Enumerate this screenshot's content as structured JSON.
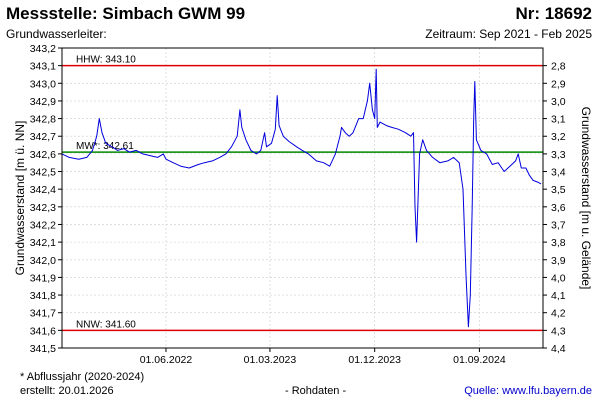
{
  "header": {
    "title": "Messstelle: Simbach GWM 99",
    "nr": "Nr: 18692",
    "subtitle": "Grundwasserleiter:",
    "period": "Zeitraum: Sep 2021 - Feb 2025"
  },
  "footer": {
    "footnote": "* Abflussjahr (2020-2024)",
    "created": "erstellt:  20.01.2026",
    "raw": "- Rohdaten -",
    "source": "Quelle: www.lfu.bayern.de"
  },
  "colors": {
    "series": "#0000dd",
    "hhw": "#dd0000",
    "mw": "#008800",
    "nnw": "#dd0000",
    "grid": "#cccccc"
  },
  "chart_data": {
    "type": "line",
    "ylabel_left": "Grundwasserstand [m ü. NN]",
    "ylabel_right": "Grundwasserstand [m u. Gelände]",
    "ylim": [
      341.5,
      343.2
    ],
    "right_ylim": [
      4.4,
      2.7
    ],
    "xlim": [
      "2021-09-01",
      "2025-02-15"
    ],
    "y_ticks": [
      "341,5",
      "341,6",
      "341,7",
      "341,8",
      "341,9",
      "342,0",
      "342,1",
      "342,2",
      "342,3",
      "342,4",
      "342,5",
      "342,6",
      "342,7",
      "342,8",
      "342,9",
      "343,0",
      "343,1",
      "343,2"
    ],
    "right_ticks": [
      "2,8",
      "2,9",
      "3,0",
      "3,1",
      "3,2",
      "3,3",
      "3,4",
      "3,5",
      "3,6",
      "3,7",
      "3,8",
      "3,9",
      "4,0",
      "4,1",
      "4,2",
      "4,3",
      "4,4"
    ],
    "x_ticks": [
      {
        "date": "2022-06-01",
        "label": "01.06.2022"
      },
      {
        "date": "2023-03-01",
        "label": "01.03.2023"
      },
      {
        "date": "2023-12-01",
        "label": "01.12.2023"
      },
      {
        "date": "2024-09-01",
        "label": "01.09.2024"
      }
    ],
    "grid": true,
    "reference_lines": [
      {
        "key": "hhw",
        "label": "HHW: 343.10",
        "value": 343.1
      },
      {
        "key": "mw",
        "label": "MW*: 342.61",
        "value": 342.61
      },
      {
        "key": "nnw",
        "label": "NNW: 341.60",
        "value": 341.6
      }
    ],
    "series": [
      {
        "values": [
          [
            "2021-09-01",
            342.6
          ],
          [
            "2021-09-20",
            342.58
          ],
          [
            "2021-10-15",
            342.57
          ],
          [
            "2021-11-05",
            342.58
          ],
          [
            "2021-11-20",
            342.62
          ],
          [
            "2021-12-01",
            342.7
          ],
          [
            "2021-12-08",
            342.8
          ],
          [
            "2021-12-15",
            342.72
          ],
          [
            "2021-12-25",
            342.66
          ],
          [
            "2022-01-10",
            342.64
          ],
          [
            "2022-01-25",
            342.62
          ],
          [
            "2022-02-10",
            342.63
          ],
          [
            "2022-02-25",
            342.61
          ],
          [
            "2022-03-15",
            342.62
          ],
          [
            "2022-04-01",
            342.6
          ],
          [
            "2022-04-20",
            342.59
          ],
          [
            "2022-05-10",
            342.58
          ],
          [
            "2022-05-25",
            342.6
          ],
          [
            "2022-06-01",
            342.57
          ],
          [
            "2022-06-20",
            342.55
          ],
          [
            "2022-07-10",
            342.53
          ],
          [
            "2022-08-01",
            342.52
          ],
          [
            "2022-08-25",
            342.54
          ],
          [
            "2022-09-10",
            342.55
          ],
          [
            "2022-10-01",
            342.56
          ],
          [
            "2022-10-20",
            342.58
          ],
          [
            "2022-11-05",
            342.6
          ],
          [
            "2022-11-20",
            342.64
          ],
          [
            "2022-12-05",
            342.7
          ],
          [
            "2022-12-12",
            342.85
          ],
          [
            "2022-12-17",
            342.75
          ],
          [
            "2022-12-28",
            342.68
          ],
          [
            "2023-01-10",
            342.62
          ],
          [
            "2023-01-25",
            342.6
          ],
          [
            "2023-02-05",
            342.62
          ],
          [
            "2023-02-15",
            342.72
          ],
          [
            "2023-02-20",
            342.64
          ],
          [
            "2023-03-05",
            342.66
          ],
          [
            "2023-03-15",
            342.74
          ],
          [
            "2023-03-20",
            342.93
          ],
          [
            "2023-03-25",
            342.76
          ],
          [
            "2023-04-05",
            342.7
          ],
          [
            "2023-04-20",
            342.67
          ],
          [
            "2023-05-10",
            342.64
          ],
          [
            "2023-05-25",
            342.62
          ],
          [
            "2023-06-10",
            342.6
          ],
          [
            "2023-07-01",
            342.56
          ],
          [
            "2023-07-20",
            342.55
          ],
          [
            "2023-08-05",
            342.53
          ],
          [
            "2023-08-20",
            342.6
          ],
          [
            "2023-09-01",
            342.7
          ],
          [
            "2023-09-05",
            342.75
          ],
          [
            "2023-09-15",
            342.72
          ],
          [
            "2023-09-25",
            342.7
          ],
          [
            "2023-10-05",
            342.72
          ],
          [
            "2023-10-20",
            342.8
          ],
          [
            "2023-11-01",
            342.8
          ],
          [
            "2023-11-12",
            342.9
          ],
          [
            "2023-11-18",
            343.0
          ],
          [
            "2023-11-25",
            342.85
          ],
          [
            "2023-12-01",
            342.8
          ],
          [
            "2023-12-05",
            343.08
          ],
          [
            "2023-12-08",
            342.75
          ],
          [
            "2023-12-15",
            342.78
          ],
          [
            "2024-01-01",
            342.76
          ],
          [
            "2024-01-15",
            342.75
          ],
          [
            "2024-02-01",
            342.74
          ],
          [
            "2024-02-20",
            342.72
          ],
          [
            "2024-03-05",
            342.7
          ],
          [
            "2024-03-12",
            342.72
          ],
          [
            "2024-03-16",
            342.3
          ],
          [
            "2024-03-20",
            342.1
          ],
          [
            "2024-03-24",
            342.35
          ],
          [
            "2024-03-28",
            342.6
          ],
          [
            "2024-04-05",
            342.68
          ],
          [
            "2024-04-15",
            342.62
          ],
          [
            "2024-05-01",
            342.58
          ],
          [
            "2024-05-20",
            342.55
          ],
          [
            "2024-06-10",
            342.56
          ],
          [
            "2024-06-25",
            342.58
          ],
          [
            "2024-07-10",
            342.55
          ],
          [
            "2024-07-20",
            342.4
          ],
          [
            "2024-07-28",
            341.9
          ],
          [
            "2024-08-03",
            341.62
          ],
          [
            "2024-08-08",
            341.8
          ],
          [
            "2024-08-13",
            342.3
          ],
          [
            "2024-08-17",
            342.8
          ],
          [
            "2024-08-20",
            343.01
          ],
          [
            "2024-08-24",
            342.68
          ],
          [
            "2024-09-05",
            342.62
          ],
          [
            "2024-09-20",
            342.6
          ],
          [
            "2024-10-05",
            342.54
          ],
          [
            "2024-10-20",
            342.55
          ],
          [
            "2024-11-05",
            342.5
          ],
          [
            "2024-11-20",
            342.53
          ],
          [
            "2024-12-05",
            342.56
          ],
          [
            "2024-12-12",
            342.6
          ],
          [
            "2024-12-20",
            342.52
          ],
          [
            "2025-01-01",
            342.52
          ],
          [
            "2025-01-10",
            342.48
          ],
          [
            "2025-01-20",
            342.45
          ],
          [
            "2025-02-01",
            342.44
          ],
          [
            "2025-02-10",
            342.43
          ]
        ]
      }
    ]
  }
}
